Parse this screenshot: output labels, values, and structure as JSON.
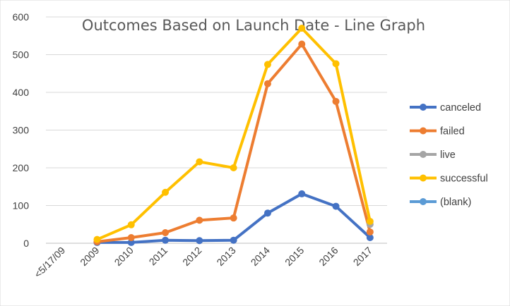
{
  "chart_data": {
    "type": "line",
    "title": "Outcomes Based on Launch Date - Line Graph",
    "xlabel": "",
    "ylabel": "",
    "categories": [
      "<5/17/09",
      "2009",
      "2010",
      "2011",
      "2012",
      "2013",
      "2014",
      "2015",
      "2016",
      "2017"
    ],
    "ylim": [
      0,
      600
    ],
    "yticks": [
      0,
      100,
      200,
      300,
      400,
      500,
      600
    ],
    "grid": true,
    "legend_position": "right",
    "series": [
      {
        "name": "canceled",
        "color": "#4472c4",
        "values": [
          null,
          2,
          2,
          8,
          7,
          8,
          80,
          131,
          98,
          15
        ]
      },
      {
        "name": "failed",
        "color": "#ed7d31",
        "values": [
          null,
          4,
          15,
          28,
          61,
          67,
          423,
          528,
          376,
          30
        ]
      },
      {
        "name": "live",
        "color": "#a5a5a5",
        "values": [
          null,
          null,
          null,
          null,
          null,
          null,
          null,
          null,
          null,
          50
        ]
      },
      {
        "name": "successful",
        "color": "#ffc000",
        "values": [
          null,
          10,
          49,
          135,
          216,
          200,
          474,
          570,
          476,
          58
        ]
      },
      {
        "name": "(blank)",
        "color": "#5b9bd5",
        "values": [
          null,
          null,
          null,
          null,
          null,
          null,
          null,
          null,
          null,
          null
        ]
      }
    ]
  }
}
